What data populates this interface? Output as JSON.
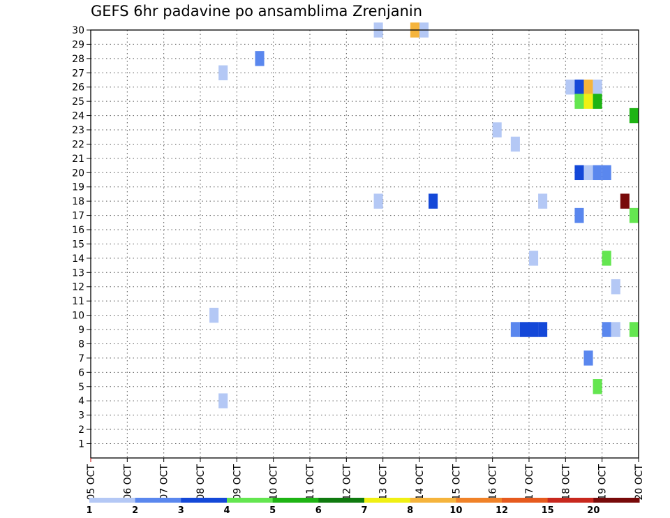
{
  "chart_data": {
    "type": "heatmap",
    "title": "GEFS 6hr padavine po ansamblima Zrenjanin",
    "xlabel": "",
    "ylabel": "",
    "x_ticks": [
      "05 OCT",
      "06 OCT",
      "07 OCT",
      "08 OCT",
      "09 OCT",
      "10 OCT",
      "11 OCT",
      "12 OCT",
      "13 OCT",
      "14 OCT",
      "15 OCT",
      "16 OCT",
      "17 OCT",
      "18 OCT",
      "19 OCT",
      "20 OCT"
    ],
    "x_range": [
      "05 OCT 00h",
      "20 OCT 00h"
    ],
    "time_step_hours": 6,
    "y_ticks": [
      1,
      2,
      3,
      4,
      5,
      6,
      7,
      8,
      9,
      10,
      11,
      12,
      13,
      14,
      15,
      16,
      17,
      18,
      19,
      20,
      21,
      22,
      23,
      24,
      25,
      26,
      27,
      28,
      29,
      30
    ],
    "y_range": [
      0,
      30
    ],
    "grid": true,
    "colorbar": {
      "levels": [
        "1",
        "2",
        "3",
        "4",
        "5",
        "6",
        "7",
        "8",
        "10",
        "12",
        "15",
        "20"
      ],
      "colors": [
        "#b4c8f5",
        "#5a87ee",
        "#1448d8",
        "#64e650",
        "#1eb414",
        "#0f7a0f",
        "#f0f014",
        "#f5b43c",
        "#f08228",
        "#e65a1e",
        "#c8281e",
        "#780a0a"
      ]
    },
    "cells": [
      {
        "member": 30,
        "time": "12 OCT 18h",
        "value": 1.5
      },
      {
        "member": 30,
        "time": "13 OCT 18h",
        "value": 9
      },
      {
        "member": 30,
        "time": "14 OCT 00h",
        "value": 1.5
      },
      {
        "member": 28,
        "time": "09 OCT 12h",
        "value": 2.5
      },
      {
        "member": 27,
        "time": "08 OCT 12h",
        "value": 1.5
      },
      {
        "member": 26,
        "time": "18 OCT 00h",
        "value": 1.5
      },
      {
        "member": 26,
        "time": "18 OCT 06h",
        "value": 3.5
      },
      {
        "member": 26,
        "time": "18 OCT 12h",
        "value": 9
      },
      {
        "member": 26,
        "time": "18 OCT 18h",
        "value": 1.5
      },
      {
        "member": 25,
        "time": "18 OCT 06h",
        "value": 4.5
      },
      {
        "member": 25,
        "time": "18 OCT 12h",
        "value": 7.5
      },
      {
        "member": 25,
        "time": "18 OCT 18h",
        "value": 5.5
      },
      {
        "member": 24,
        "time": "19 OCT 18h",
        "value": 5.5
      },
      {
        "member": 23,
        "time": "16 OCT 00h",
        "value": 1.5
      },
      {
        "member": 22,
        "time": "16 OCT 12h",
        "value": 1.5
      },
      {
        "member": 20,
        "time": "18 OCT 06h",
        "value": 3.5
      },
      {
        "member": 20,
        "time": "18 OCT 12h",
        "value": 1.5
      },
      {
        "member": 20,
        "time": "18 OCT 18h",
        "value": 2.5
      },
      {
        "member": 20,
        "time": "19 OCT 00h",
        "value": 2.5
      },
      {
        "member": 18,
        "time": "12 OCT 18h",
        "value": 1.5
      },
      {
        "member": 18,
        "time": "14 OCT 06h",
        "value": 3.5
      },
      {
        "member": 18,
        "time": "17 OCT 06h",
        "value": 1.5
      },
      {
        "member": 18,
        "time": "19 OCT 12h",
        "value": 22
      },
      {
        "member": 17,
        "time": "18 OCT 06h",
        "value": 2.5
      },
      {
        "member": 17,
        "time": "19 OCT 18h",
        "value": 4.5
      },
      {
        "member": 14,
        "time": "17 OCT 00h",
        "value": 1.5
      },
      {
        "member": 14,
        "time": "19 OCT 00h",
        "value": 4.5
      },
      {
        "member": 12,
        "time": "19 OCT 06h",
        "value": 1.5
      },
      {
        "member": 10,
        "time": "08 OCT 06h",
        "value": 1.5
      },
      {
        "member": 9,
        "time": "16 OCT 12h",
        "value": 2.5
      },
      {
        "member": 9,
        "time": "16 OCT 18h",
        "value": 3.5
      },
      {
        "member": 9,
        "time": "17 OCT 00h",
        "value": 3.5
      },
      {
        "member": 9,
        "time": "17 OCT 06h",
        "value": 3.5
      },
      {
        "member": 9,
        "time": "19 OCT 00h",
        "value": 2.5
      },
      {
        "member": 9,
        "time": "19 OCT 06h",
        "value": 1.5
      },
      {
        "member": 9,
        "time": "19 OCT 18h",
        "value": 4.5
      },
      {
        "member": 7,
        "time": "18 OCT 12h",
        "value": 2.5
      },
      {
        "member": 5,
        "time": "18 OCT 18h",
        "value": 4.5
      },
      {
        "member": 4,
        "time": "08 OCT 12h",
        "value": 1.5
      }
    ]
  }
}
